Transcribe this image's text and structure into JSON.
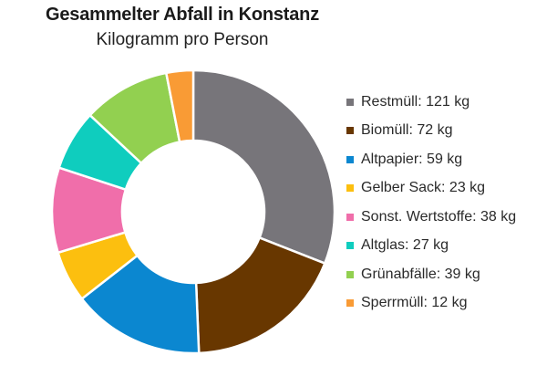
{
  "header": {
    "title": "Gesammelter Abfall in Konstanz",
    "subtitle": "Kilogramm pro Person"
  },
  "legend": {
    "items": [
      {
        "label": "Restmüll: 121 kg",
        "color": "#77757a"
      },
      {
        "label": "Biomüll: 72 kg",
        "color": "#683700"
      },
      {
        "label": "Altpapier: 59 kg",
        "color": "#0b87d0"
      },
      {
        "label": "Gelber Sack: 23 kg",
        "color": "#fcbf0f"
      },
      {
        "label": "Sonst. Wertstoffe: 38 kg",
        "color": "#f06eaa"
      },
      {
        "label": "Altglas: 27 kg",
        "color": "#0fcdbe"
      },
      {
        "label": "Grünabfälle: 39 kg",
        "color": "#92d050"
      },
      {
        "label": "Sperrmüll: 12 kg",
        "color": "#f99b35"
      }
    ]
  },
  "chart_data": {
    "type": "pie",
    "variant": "donut",
    "title": "Gesammelter Abfall in Konstanz",
    "subtitle": "Kilogramm pro Person",
    "unit": "kg",
    "categories": [
      "Restmüll",
      "Biomüll",
      "Altpapier",
      "Gelber Sack",
      "Sonst. Wertstoffe",
      "Altglas",
      "Grünabfälle",
      "Sperrmüll"
    ],
    "values": [
      121,
      72,
      59,
      23,
      38,
      27,
      39,
      12
    ],
    "colors": [
      "#77757a",
      "#683700",
      "#0b87d0",
      "#fcbf0f",
      "#f06eaa",
      "#0fcdbe",
      "#92d050",
      "#f99b35"
    ],
    "start_angle_deg": 0,
    "direction": "clockwise",
    "legend_position": "right"
  }
}
